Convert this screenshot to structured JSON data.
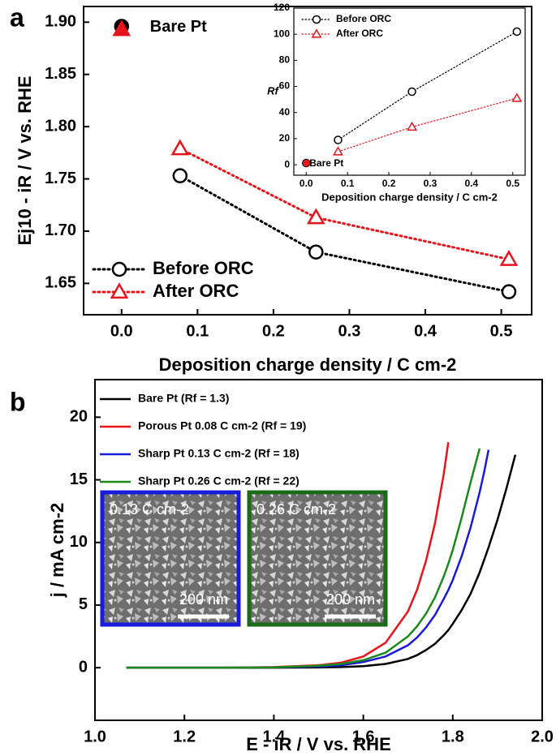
{
  "chart_data": [
    {
      "type": "line",
      "panel": "a",
      "x_label": "Deposition charge density / C cm-2",
      "y_label": "Ej10 - iR / V vs. RHE",
      "x": [
        0.077,
        0.256,
        0.51
      ],
      "series": [
        {
          "name": "Before ORC",
          "color": "#000000",
          "marker": "circle",
          "values": [
            1.753,
            1.68,
            1.642
          ]
        },
        {
          "name": "After ORC",
          "color": "#e8141b",
          "marker": "triangle",
          "values": [
            1.779,
            1.713,
            1.673
          ]
        }
      ],
      "bare_pt": {
        "label": "Bare Pt",
        "x": 0,
        "before": 1.896,
        "after": 1.893
      },
      "xlim": [
        -0.05,
        0.54
      ],
      "xticks": [
        {
          "value": 0,
          "label": "0.0"
        },
        0.1,
        0.2,
        0.3,
        0.4,
        0.5
      ],
      "ylim": [
        1.62,
        1.915
      ],
      "yticks": [
        1.65,
        {
          "value": 1.7,
          "label": "1.70"
        },
        1.75,
        {
          "value": 1.8,
          "label": "1.80"
        },
        1.85,
        {
          "value": 1.9,
          "label": "1.90"
        }
      ],
      "line_style": "dotted",
      "legend": "lower left"
    },
    {
      "type": "line",
      "x_label": "Deposition charge density / C cm-2",
      "y_label": "Rf",
      "x": [
        0.077,
        0.256,
        0.51
      ],
      "series": [
        {
          "name": "Before ORC",
          "color": "#000000",
          "marker": "circle",
          "values": [
            19,
            56,
            102
          ]
        },
        {
          "name": "After ORC",
          "color": "#e8141b",
          "marker": "triangle",
          "values": [
            10,
            29,
            51
          ]
        }
      ],
      "bare_pt": {
        "label": "Bare Pt",
        "x": 0,
        "before": 1.3,
        "after": 1.3
      },
      "xlim": [
        -0.03,
        0.53
      ],
      "xticks": [
        {
          "value": 0,
          "label": "0.0"
        },
        0.1,
        0.2,
        0.3,
        0.4,
        0.5
      ],
      "ylim": [
        -8,
        120
      ],
      "yticks": [
        0,
        20,
        40,
        60,
        80,
        100,
        120
      ],
      "line_style": "dotted",
      "legend": "upper left"
    },
    {
      "type": "line",
      "panel": "b",
      "x_label": "E - iR / V vs. RHE",
      "y_label": "j / mA cm-2",
      "x": [
        1.07,
        1.2,
        1.3,
        1.4,
        1.5,
        1.55,
        1.6,
        1.65,
        1.7,
        1.72,
        1.74,
        1.76,
        1.78,
        1.79,
        1.8,
        1.82,
        1.84,
        1.86,
        1.87,
        1.88,
        1.9,
        1.92,
        1.94
      ],
      "series": [
        {
          "name": "Bare Pt (Rf = 1.3)",
          "color": "#000000",
          "values": [
            0,
            0,
            0,
            0,
            0.02,
            0.05,
            0.12,
            0.3,
            0.7,
            1,
            1.4,
            1.9,
            2.6,
            3,
            3.5,
            4.6,
            5.9,
            7.6,
            8.6,
            9.6,
            11.8,
            14.3,
            17
          ]
        },
        {
          "name": "Porous Pt 0.08 C cm-2 (Rf = 19)",
          "color": "#e8141b",
          "values": [
            0,
            0,
            0,
            0.05,
            0.2,
            0.4,
            0.9,
            2,
            4.5,
            6.2,
            8.5,
            11.5,
            15.5,
            18,
            null,
            null,
            null,
            null,
            null,
            null,
            null,
            null,
            null
          ]
        },
        {
          "name": "Sharp Pt 0.13 C cm-2 (Rf = 18)",
          "color": "#1a1adb",
          "values": [
            0,
            0,
            0,
            0.02,
            0.1,
            0.2,
            0.45,
            0.9,
            1.8,
            2.4,
            3.2,
            4.2,
            5.5,
            6.2,
            7,
            8.9,
            11.2,
            14,
            15.6,
            17.4,
            null,
            null,
            null
          ]
        },
        {
          "name": "Sharp Pt 0.26 C cm-2 (Rf = 22)",
          "color": "#1a8a1a",
          "values": [
            0,
            0,
            0,
            0.03,
            0.15,
            0.3,
            0.6,
            1.2,
            2.5,
            3.3,
            4.3,
            5.6,
            7.3,
            8.3,
            9.4,
            12,
            14.8,
            17.5,
            null,
            null,
            null,
            null,
            null
          ]
        }
      ],
      "images": [
        {
          "label": "0.13 C cm-2",
          "scale_bar": "200 nm",
          "color": "#1a1adb"
        },
        {
          "label": "0.26 C cm-2",
          "scale_bar": "200 nm",
          "color": "#1a6a1a"
        }
      ],
      "xlim": [
        1.0,
        2.0
      ],
      "xticks": [
        {
          "value": 1,
          "label": "1.0"
        },
        1.2,
        1.4,
        1.6,
        1.8,
        {
          "value": 2,
          "label": "2.0"
        }
      ],
      "ylim": [
        -4.2,
        23
      ],
      "yticks": [
        0,
        5,
        10,
        15,
        20
      ],
      "line_style": "solid",
      "legend": "upper left"
    }
  ]
}
